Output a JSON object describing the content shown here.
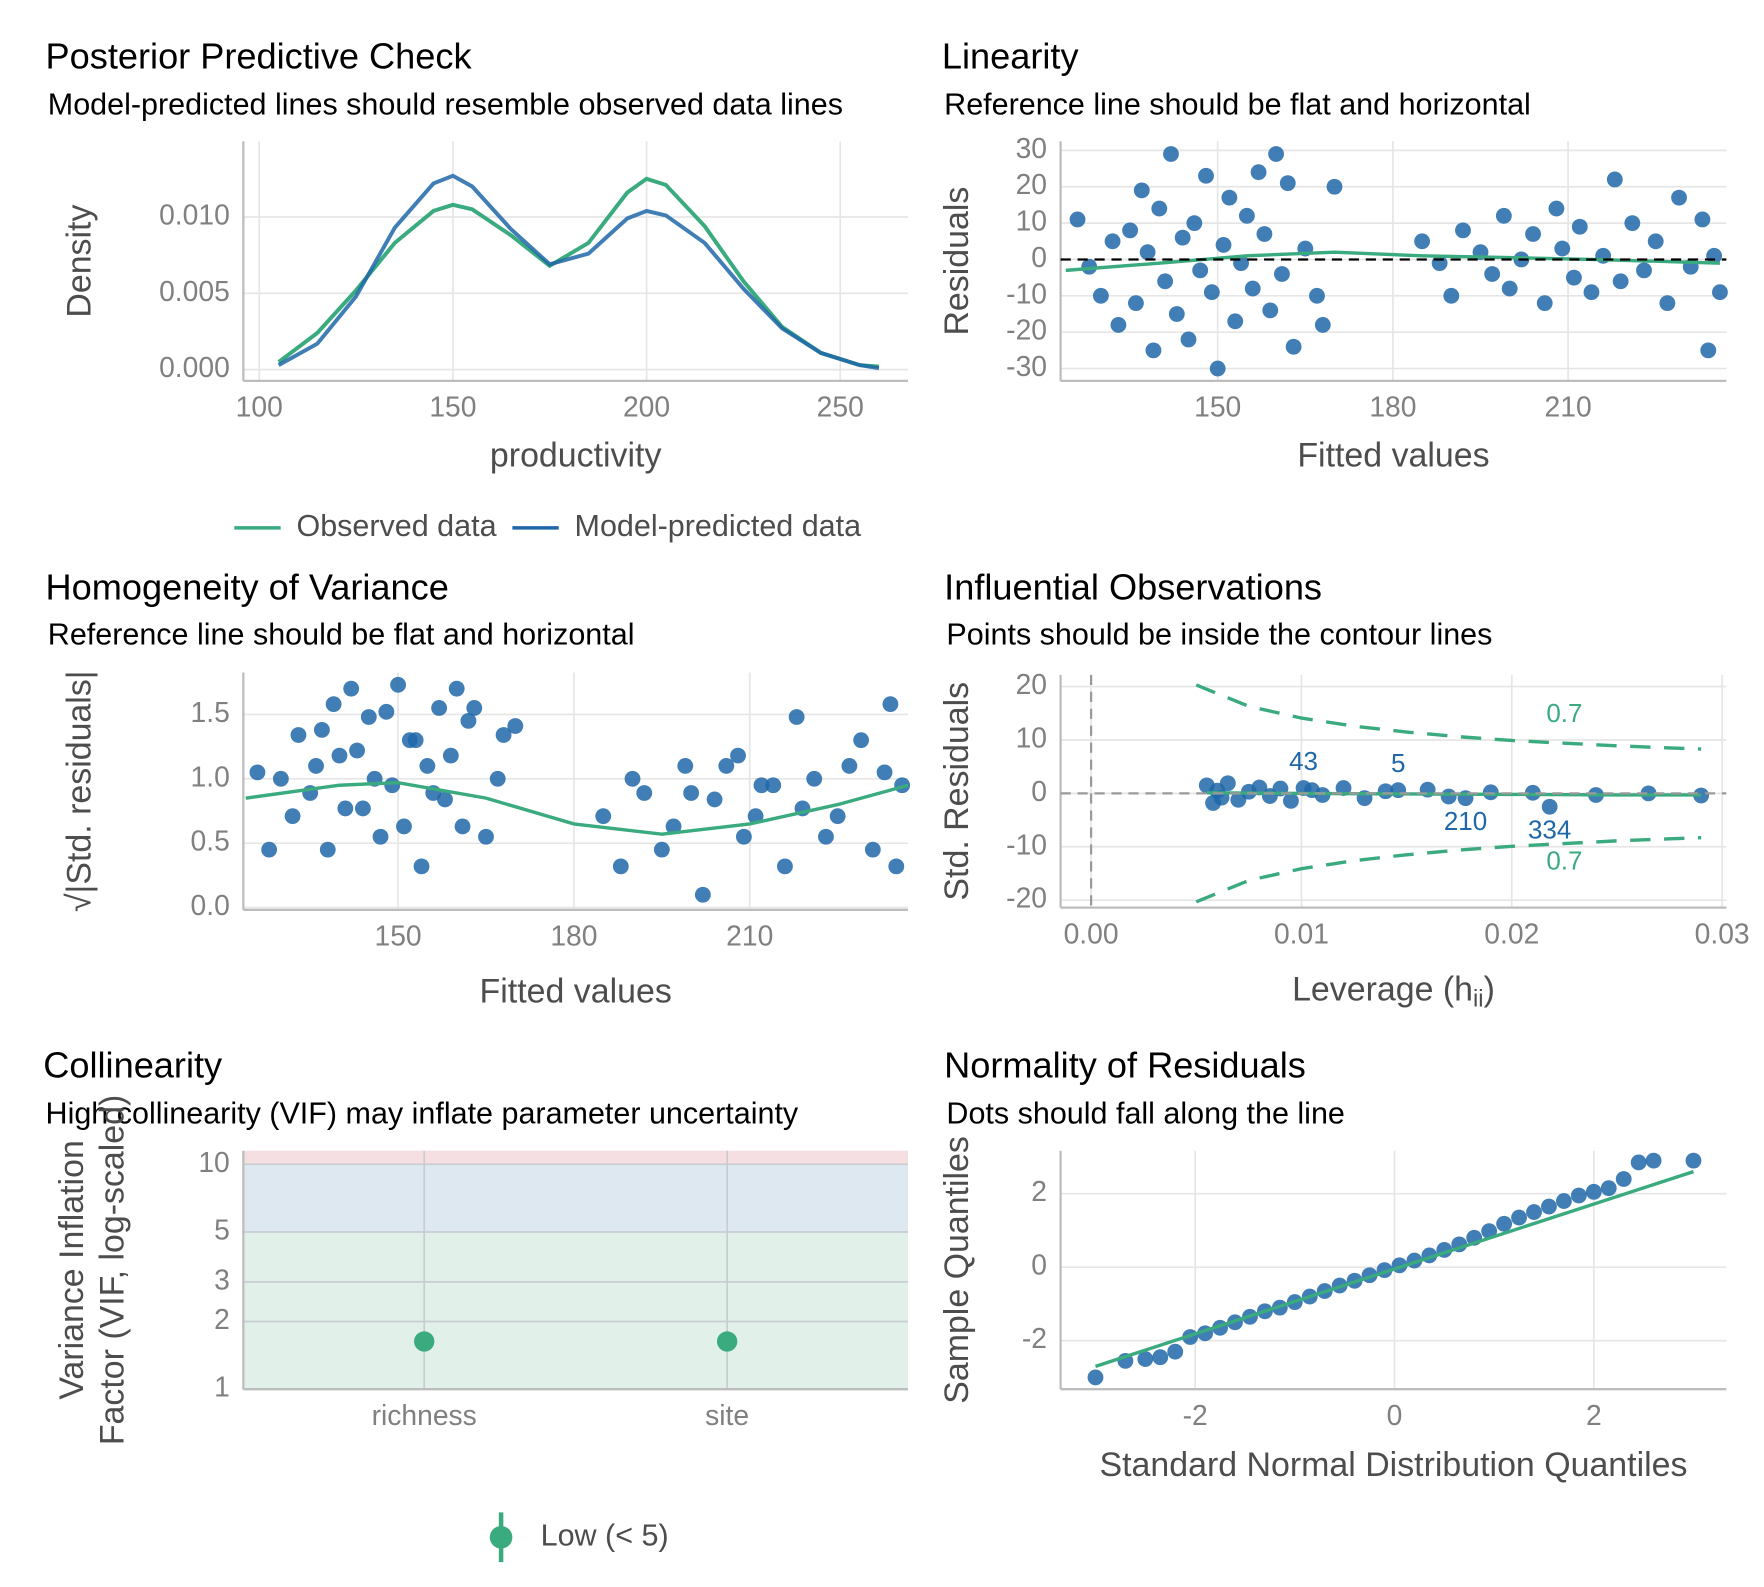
{
  "chart_data": [
    {
      "type": "density",
      "title": "Posterior Predictive Check",
      "subtitle": "Model-predicted lines should resemble observed data lines",
      "xlabel": "productivity",
      "ylabel": "Density",
      "x": [
        105,
        115,
        125,
        135,
        145,
        150,
        155,
        165,
        175,
        185,
        195,
        200,
        205,
        215,
        225,
        235,
        245,
        255,
        260
      ],
      "series": [
        {
          "name": "Observed data",
          "color": "#3aaa7f",
          "values": [
            0.0005,
            0.0024,
            0.0052,
            0.0083,
            0.0104,
            0.0108,
            0.0105,
            0.0088,
            0.0068,
            0.0083,
            0.0116,
            0.0125,
            0.0121,
            0.0094,
            0.0058,
            0.0028,
            0.0011,
            0.0003,
            0.0002
          ]
        },
        {
          "name": "Model-predicted data",
          "color": "#1f67a8",
          "values": [
            0.0003,
            0.0017,
            0.0048,
            0.0093,
            0.0122,
            0.0127,
            0.012,
            0.0092,
            0.0069,
            0.0076,
            0.0099,
            0.0104,
            0.0101,
            0.0083,
            0.0053,
            0.0027,
            0.0011,
            0.0003,
            0.0001
          ]
        }
      ],
      "xlim": [
        95.9,
        267.5
      ],
      "xticks": [
        100,
        150,
        200,
        250
      ],
      "ylim": [
        -0.00074,
        0.01496
      ],
      "yticks": [
        {
          "value": 0,
          "label": "0.000"
        },
        0.005,
        {
          "value": 0.01,
          "label": "0.010"
        }
      ]
    },
    {
      "type": "scatter",
      "title": "Linearity",
      "subtitle": "Reference line should be flat and horizontal",
      "xlabel": "Fitted values",
      "ylabel": "Residuals",
      "points": {
        "color": "#1f67a8",
        "x": [
          126,
          128,
          130,
          132,
          133,
          135,
          136,
          137,
          138,
          139,
          140,
          141,
          142,
          143,
          144,
          145,
          146,
          147,
          148,
          149,
          150,
          151,
          152,
          153,
          154,
          155,
          156,
          157,
          158,
          159,
          160,
          161,
          162,
          163,
          165,
          167,
          170,
          168,
          185,
          188,
          190,
          192,
          195,
          197,
          199,
          200,
          202,
          204,
          206,
          208,
          209,
          211,
          212,
          214,
          216,
          218,
          219,
          221,
          223,
          225,
          227,
          229,
          231,
          233,
          234,
          235,
          236
        ],
        "y": [
          11,
          -2,
          -10,
          5,
          -18,
          8,
          -12,
          19,
          2,
          -25,
          14,
          -6,
          29,
          -15,
          6,
          -22,
          10,
          -3,
          23,
          -9,
          -30,
          4,
          17,
          -17,
          -1,
          12,
          -8,
          24,
          7,
          -14,
          29,
          -4,
          21,
          -24,
          3,
          -10,
          20,
          -18,
          5,
          -1,
          -10,
          8,
          2,
          -4,
          12,
          -8,
          0,
          7,
          -12,
          14,
          3,
          -5,
          9,
          -9,
          1,
          22,
          -6,
          10,
          -3,
          5,
          -12,
          17,
          -2,
          11,
          -25,
          1,
          -9
        ]
      },
      "fit_line": {
        "color": "#3aaa7f",
        "x": [
          124,
          140,
          155,
          170,
          185,
          200,
          215,
          236
        ],
        "y": [
          -3,
          -1,
          1,
          2,
          1,
          0.5,
          0,
          -1
        ]
      },
      "reference_y": 0,
      "reference_color": "#000000",
      "xlim": [
        123.1,
        237.1
      ],
      "xticks": [
        150,
        180,
        210
      ],
      "ylim": [
        -33.4,
        32.5
      ],
      "yticks": [
        -30,
        -20,
        -10,
        0,
        10,
        20,
        30
      ]
    },
    {
      "type": "scatter",
      "title": "Homogeneity of Variance",
      "subtitle": "Reference line should be flat and horizontal",
      "xlabel": "Fitted values",
      "ylabel": "√|Std. residuals|",
      "points": {
        "color": "#1f67a8",
        "x": [
          126,
          128,
          130,
          132,
          133,
          135,
          136,
          137,
          138,
          139,
          140,
          141,
          142,
          143,
          144,
          145,
          146,
          147,
          148,
          149,
          150,
          151,
          152,
          153,
          154,
          155,
          156,
          157,
          158,
          159,
          160,
          161,
          162,
          163,
          165,
          167,
          170,
          168,
          185,
          188,
          190,
          192,
          195,
          197,
          199,
          200,
          202,
          204,
          206,
          208,
          209,
          211,
          212,
          214,
          216,
          218,
          219,
          221,
          223,
          225,
          227,
          229,
          231,
          233,
          234,
          235,
          236
        ],
        "y": [
          1.05,
          0.45,
          1.0,
          0.71,
          1.34,
          0.89,
          1.1,
          1.38,
          0.45,
          1.58,
          1.18,
          0.77,
          1.7,
          1.22,
          0.77,
          1.48,
          1.0,
          0.55,
          1.52,
          0.95,
          1.73,
          0.63,
          1.3,
          1.3,
          0.32,
          1.1,
          0.89,
          1.55,
          0.84,
          1.18,
          1.7,
          0.63,
          1.45,
          1.55,
          0.55,
          1.0,
          1.41,
          1.34,
          0.71,
          0.32,
          1.0,
          0.89,
          0.45,
          0.63,
          1.1,
          0.89,
          0.1,
          0.84,
          1.1,
          1.18,
          0.55,
          0.71,
          0.95,
          0.95,
          0.32,
          1.48,
          0.77,
          1.0,
          0.55,
          0.71,
          1.1,
          1.3,
          0.45,
          1.05,
          1.58,
          0.32,
          0.95
        ]
      },
      "fit_line": {
        "color": "#3aaa7f",
        "x": [
          124,
          140,
          150,
          165,
          180,
          195,
          210,
          225,
          237
        ],
        "y": [
          0.85,
          0.95,
          0.97,
          0.85,
          0.65,
          0.57,
          0.65,
          0.8,
          0.95
        ]
      },
      "xlim": [
        123.6,
        237
      ],
      "xticks": [
        150,
        180,
        210
      ],
      "ylim": [
        -0.018,
        1.825
      ],
      "yticks": [
        {
          "value": 0,
          "label": "0.0"
        },
        0.5,
        {
          "value": 1,
          "label": "1.0"
        },
        1.5
      ]
    },
    {
      "type": "scatter",
      "title": "Influential Observations",
      "subtitle": "Points should be inside the contour lines",
      "xlabel": [
        "Leverage (h",
        "ii",
        ")"
      ],
      "ylabel": "Std. Residuals",
      "points": {
        "color": "#1f67a8",
        "x": [
          0.0055,
          0.0058,
          0.006,
          0.0062,
          0.0065,
          0.007,
          0.0075,
          0.008,
          0.0085,
          0.009,
          0.0095,
          0.0105,
          0.011,
          0.012,
          0.013,
          0.014,
          0.016,
          0.017,
          0.019,
          0.021,
          0.024,
          0.0265,
          0.029
        ],
        "y": [
          1.5,
          -1.8,
          0.5,
          -0.8,
          1.9,
          -1.2,
          0.3,
          1.1,
          -0.5,
          0.9,
          -1.4,
          0.6,
          -0.3,
          1.0,
          -0.9,
          0.4,
          0.7,
          -0.6,
          0.2,
          0.1,
          -0.3,
          0.0,
          -0.4
        ]
      },
      "labeled_points": {
        "labels": [
          "43",
          "5",
          "210",
          "334"
        ],
        "x": [
          0.0101,
          0.0146,
          0.0178,
          0.0218
        ],
        "y": [
          1.0,
          0.6,
          -0.9,
          -2.5
        ]
      },
      "fit_line": {
        "color": "#3aaa7f",
        "x": [
          0.0055,
          0.01,
          0.015,
          0.02,
          0.025,
          0.029
        ],
        "y": [
          0.1,
          0,
          -0.1,
          -0.2,
          -0.3,
          -0.3
        ]
      },
      "contour_label": "0.7",
      "contour_color": "#3aaa7f",
      "contours": [
        {
          "x": [
            0.005,
            0.0075,
            0.01,
            0.0125,
            0.015,
            0.0175,
            0.02,
            0.0225,
            0.025,
            0.0275,
            0.029
          ],
          "y": [
            20.3,
            16.3,
            14.1,
            12.6,
            11.5,
            10.6,
            9.9,
            9.4,
            8.9,
            8.5,
            8.3
          ]
        },
        {
          "x": [
            0.005,
            0.0075,
            0.01,
            0.0125,
            0.015,
            0.0175,
            0.02,
            0.0225,
            0.025,
            0.0275,
            0.029
          ],
          "y": [
            -20.3,
            -16.3,
            -14.1,
            -12.6,
            -11.5,
            -10.6,
            -9.9,
            -9.4,
            -8.9,
            -8.5,
            -8.3
          ]
        }
      ],
      "reference_x": 0,
      "reference_y": 0,
      "reference_color": "#9a9a9a",
      "xlim": [
        -0.00145,
        0.0302
      ],
      "xticks": [
        {
          "value": 0,
          "label": "0.00"
        },
        0.01,
        0.02,
        0.03
      ],
      "ylim": [
        -21.4,
        22.2
      ],
      "yticks": [
        -20,
        -10,
        0,
        10,
        20
      ]
    },
    {
      "type": "dot",
      "title": "Collinearity",
      "subtitle": "High collinearity (VIF) may inflate parameter uncertainty",
      "ylabel": [
        "Variance Inflation",
        "Factor (VIF, log-scaled)"
      ],
      "categories": [
        "richness",
        "site"
      ],
      "values": [
        1.63,
        1.63
      ],
      "ci_low": [
        1.57,
        1.57
      ],
      "ci_high": [
        1.69,
        1.69
      ],
      "color": "#3aaa7f",
      "legend_label": "Low (< 5)",
      "thresholds": [
        5,
        10
      ],
      "zone_colors": [
        "#e1f1ea",
        "#dde8f1",
        "#f6dfe3"
      ],
      "log_y": true,
      "ylim": [
        1,
        11.5
      ],
      "yticks": [
        1,
        2,
        3,
        5,
        10
      ]
    },
    {
      "type": "scatter",
      "title": "Normality of Residuals",
      "subtitle": "Dots should fall along the line",
      "xlabel": "Standard Normal Distribution Quantiles",
      "ylabel": "Sample Quantiles",
      "points": {
        "color": "#1f67a8",
        "x": [
          -3,
          -2.7,
          -2.5,
          -2.35,
          -2.2,
          -2.05,
          -1.9,
          -1.75,
          -1.6,
          -1.45,
          -1.3,
          -1.15,
          -1,
          -0.85,
          -0.7,
          -0.55,
          -0.4,
          -0.25,
          -0.1,
          0.05,
          0.2,
          0.35,
          0.5,
          0.65,
          0.8,
          0.95,
          1.1,
          1.25,
          1.4,
          1.55,
          1.7,
          1.85,
          2.0,
          2.15,
          2.3,
          2.45,
          2.6,
          3.0
        ],
        "y": [
          -3.0,
          -2.55,
          -2.5,
          -2.45,
          -2.3,
          -1.9,
          -1.8,
          -1.65,
          -1.5,
          -1.35,
          -1.2,
          -1.1,
          -0.95,
          -0.8,
          -0.65,
          -0.5,
          -0.37,
          -0.22,
          -0.08,
          0.05,
          0.18,
          0.32,
          0.47,
          0.62,
          0.8,
          0.98,
          1.18,
          1.35,
          1.5,
          1.65,
          1.8,
          1.95,
          2.05,
          2.15,
          2.4,
          2.85,
          2.9,
          2.9
        ]
      },
      "fit_line": {
        "color": "#3aaa7f",
        "x": [
          -3,
          3
        ],
        "y": [
          -2.7,
          2.6
        ]
      },
      "xlim": [
        -3.35,
        3.33
      ],
      "xticks": [
        -2,
        0,
        2
      ],
      "ylim": [
        -3.32,
        3.17
      ],
      "yticks": [
        -2,
        0,
        2
      ]
    }
  ]
}
